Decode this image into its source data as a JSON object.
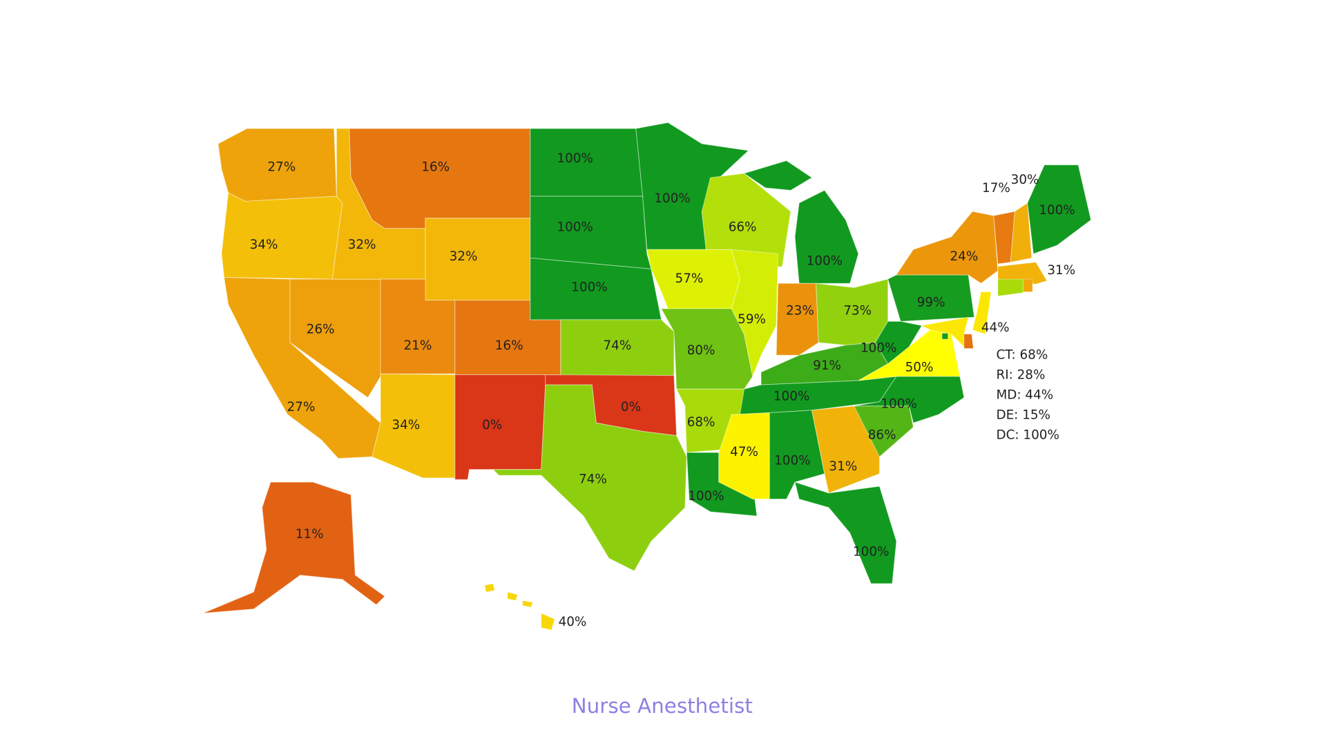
{
  "chart_data": {
    "type": "choropleth",
    "title": "Nurse Anesthetist",
    "values": [
      27,
      34,
      27,
      26,
      32,
      16,
      32,
      21,
      16,
      34,
      0,
      100,
      100,
      100,
      74,
      0,
      74,
      100,
      57,
      80,
      68,
      100,
      66,
      59,
      100,
      23,
      73,
      91,
      100,
      47,
      100,
      31,
      100,
      86,
      100,
      50,
      100,
      99,
      24,
      17,
      30,
      100,
      31,
      44,
      11,
      40
    ],
    "value_labels": [
      "27%",
      "34%",
      "27%",
      "26%",
      "32%",
      "16%",
      "32%",
      "21%",
      "16%",
      "34%",
      "0%",
      "100%",
      "100%",
      "100%",
      "74%",
      "0%",
      "74%",
      "100%",
      "57%",
      "80%",
      "68%",
      "100%",
      "66%",
      "59%",
      "100%",
      "23%",
      "73%",
      "91%",
      "100%",
      "47%",
      "100%",
      "31%",
      "100%",
      "86%",
      "100%",
      "50%",
      "100%",
      "99%",
      "24%",
      "17%",
      "30%",
      "100%",
      "31%",
      "44%",
      "11%",
      "40%"
    ],
    "callout_values": [
      68,
      28,
      44,
      15,
      100
    ],
    "callout_labels": [
      "CT: 68%",
      "RI: 28%",
      "MD: 44%",
      "DE: 15%",
      "DC: 100%"
    ],
    "color_stops": [
      {
        "value": 0,
        "color": "#da3618"
      },
      {
        "value": 50,
        "color": "#ffff00"
      },
      {
        "value": 100,
        "color": "#119a1f"
      }
    ]
  }
}
